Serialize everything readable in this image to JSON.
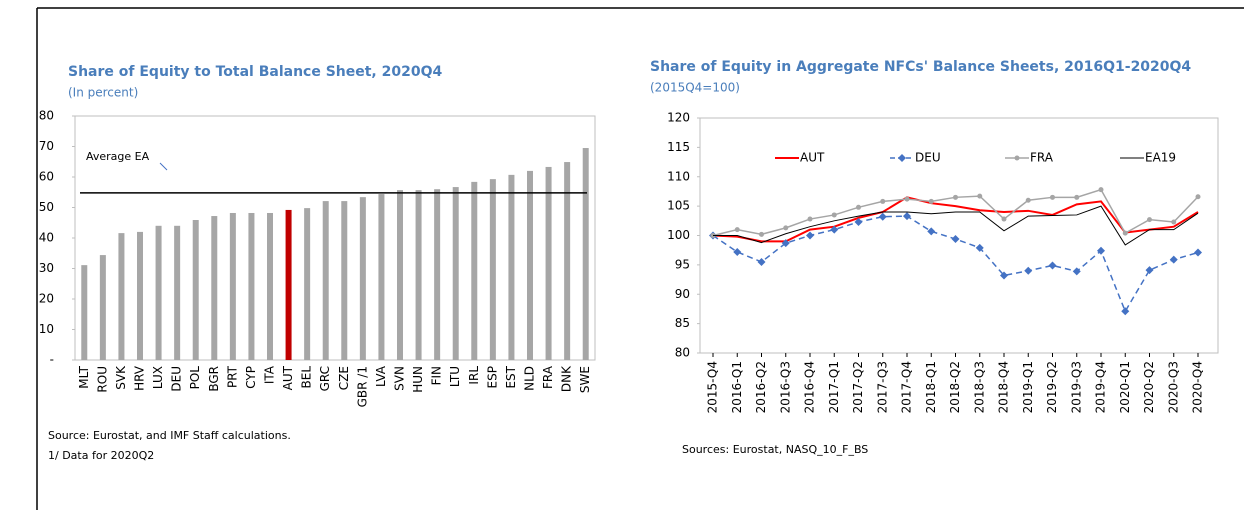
{
  "chart_data": [
    {
      "type": "bar",
      "title": "Share of Equity to Total Balance Sheet, 2020Q4",
      "subtitle": "(In percent)",
      "categories": [
        "MLT",
        "ROU",
        "SVK",
        "HRV",
        "LUX",
        "DEU",
        "POL",
        "BGR",
        "PRT",
        "CYP",
        "ITA",
        "AUT",
        "BEL",
        "GRC",
        "CZE",
        "GBR /1",
        "LVA",
        "SVN",
        "HUN",
        "FIN",
        "LTU",
        "IRL",
        "ESP",
        "EST",
        "NLD",
        "FRA",
        "DNK",
        "SWE"
      ],
      "values": [
        31.1,
        34.4,
        41.6,
        42,
        44,
        44,
        45.9,
        47.2,
        48.2,
        48.2,
        48.2,
        49.2,
        49.8,
        52.1,
        52.1,
        53.4,
        54.4,
        55.7,
        55.7,
        56,
        56.7,
        58.4,
        59.3,
        60.7,
        62,
        63.3,
        64.9,
        69.5
      ],
      "colors": [
        "#a6a6a6",
        "#a6a6a6",
        "#a6a6a6",
        "#a6a6a6",
        "#a6a6a6",
        "#a6a6a6",
        "#a6a6a6",
        "#a6a6a6",
        "#a6a6a6",
        "#a6a6a6",
        "#a6a6a6",
        "#c00000",
        "#a6a6a6",
        "#a6a6a6",
        "#a6a6a6",
        "#a6a6a6",
        "#a6a6a6",
        "#a6a6a6",
        "#a6a6a6",
        "#a6a6a6",
        "#a6a6a6",
        "#a6a6a6",
        "#a6a6a6",
        "#a6a6a6",
        "#a6a6a6",
        "#a6a6a6",
        "#a6a6a6",
        "#a6a6a6"
      ],
      "reference_line": {
        "value": 54.8,
        "label": "Average EA",
        "color": "#000000"
      },
      "ylim": [
        0,
        80
      ],
      "yticks": [
        {
          "value": 0,
          "label": "-"
        },
        10,
        20,
        30,
        40,
        50,
        60,
        70,
        80
      ],
      "notes": [
        "Source: Eurostat, and IMF Staff calculations.",
        "1/ Data for 2020Q2"
      ]
    },
    {
      "type": "line",
      "title": "Share of Equity in Aggregate NFCs' Balance Sheets, 2016Q1-2020Q4",
      "subtitle": "(2015Q4=100)",
      "categories": [
        "2015-Q4",
        "2016-Q1",
        "2016-Q2",
        "2016-Q3",
        "2016-Q4",
        "2017-Q1",
        "2017-Q2",
        "2017-Q3",
        "2017-Q4",
        "2018-Q1",
        "2018-Q2",
        "2018-Q3",
        "2018-Q4",
        "2019-Q1",
        "2019-Q2",
        "2019-Q3",
        "2019-Q4",
        "2020-Q1",
        "2020-Q2",
        "2020-Q3",
        "2020-Q4"
      ],
      "series": [
        {
          "name": "AUT",
          "color": "#ff0000",
          "width": 2,
          "dash": false,
          "marker": "none",
          "values": [
            100,
            99.8,
            99,
            99,
            101,
            101.5,
            103,
            104,
            106.5,
            105.5,
            105,
            104.3,
            104,
            104.2,
            103.5,
            105.3,
            105.8,
            100.5,
            101,
            101.5,
            104
          ]
        },
        {
          "name": "DEU",
          "color": "#4472c4",
          "width": 1.5,
          "dash": true,
          "marker": "diamond",
          "values": [
            100,
            97.2,
            95.5,
            98.7,
            100,
            101,
            102.3,
            103.2,
            103.3,
            100.7,
            99.4,
            97.9,
            93.2,
            94,
            94.9,
            93.9,
            97.4,
            87.1,
            94.1,
            95.9,
            97.1
          ]
        },
        {
          "name": "FRA",
          "color": "#a5a5a5",
          "width": 1.5,
          "dash": false,
          "marker": "circle",
          "values": [
            100,
            101,
            100.2,
            101.3,
            102.8,
            103.5,
            104.8,
            105.8,
            106.2,
            105.8,
            106.5,
            106.7,
            102.8,
            106,
            106.5,
            106.5,
            107.8,
            100.4,
            102.7,
            102.3,
            106.6
          ]
        },
        {
          "name": "EA19",
          "color": "#000000",
          "width": 1,
          "dash": false,
          "marker": "none",
          "values": [
            100,
            100,
            98.8,
            100.3,
            101.5,
            102.5,
            103.3,
            104,
            104,
            103.7,
            104,
            104,
            100.8,
            103.3,
            103.4,
            103.5,
            105,
            98.4,
            101,
            101,
            103.8
          ]
        }
      ],
      "ylim": [
        80,
        120
      ],
      "yticks": [
        80,
        85,
        90,
        95,
        100,
        105,
        110,
        115,
        120
      ],
      "legend": "top",
      "notes": [
        "Sources: Eurostat, NASQ_10_F_BS"
      ]
    }
  ]
}
